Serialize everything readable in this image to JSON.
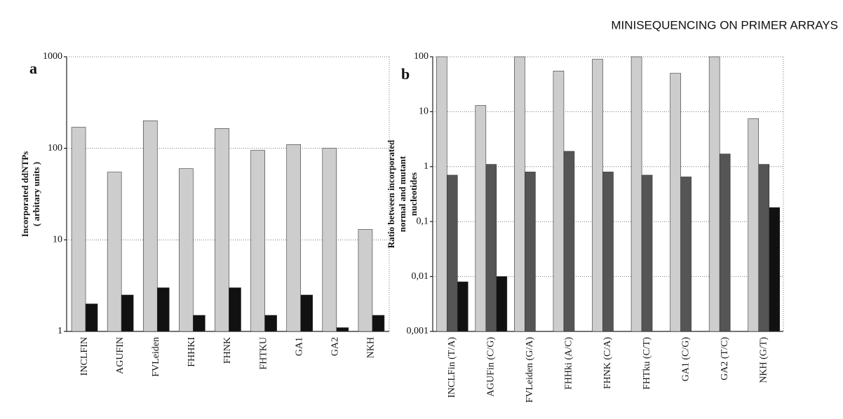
{
  "header": "MINISEQUENCING ON PRIMER ARRAYS",
  "chart_data": [
    {
      "type": "bar",
      "panel": "a",
      "ylabel": [
        "Incorporated ddNTPs",
        "( arbitary units )"
      ],
      "categories": [
        "INCLFIN",
        "AGUFIN",
        "FVLeiden",
        "FHHKI",
        "FHNK",
        "FHTKU",
        "GA1",
        "GA2",
        "NKH"
      ],
      "series": [
        {
          "color": "#cdcdcd",
          "values": [
            170,
            55,
            200,
            60,
            165,
            95,
            110,
            100,
            13
          ]
        },
        {
          "color": "#111111",
          "values": [
            2,
            2.5,
            3,
            1.5,
            3,
            1.5,
            2.5,
            1.1,
            1.5
          ]
        }
      ],
      "log_scale": true,
      "ylim": [
        1,
        1000
      ],
      "yticks": [
        1,
        10,
        100,
        1000
      ],
      "grid": true
    },
    {
      "type": "bar",
      "panel": "b",
      "ylabel": [
        "Ratio between incorporated",
        "normal and mutant",
        "nucleotides"
      ],
      "categories": [
        "INCLFin (T/A)",
        "AGUFin (C/G)",
        "FVLeiden (G/A)",
        "FHHki (A/C)",
        "FHNK (C/A)",
        "FHTku (C/T)",
        "GA1 (C/G)",
        "GA2 (T/C)",
        "NKH (G/T)"
      ],
      "series": [
        {
          "color": "#cdcdcd",
          "values": [
            100,
            13,
            100,
            55,
            90,
            100,
            50,
            100,
            7.5
          ]
        },
        {
          "color": "#555555",
          "values": [
            0.7,
            1.1,
            0.8,
            1.9,
            0.8,
            0.7,
            0.65,
            1.7,
            1.1
          ]
        },
        {
          "color": "#111111",
          "values": [
            0.008,
            0.01,
            0.001,
            0.001,
            0.001,
            0.001,
            0.001,
            0.001,
            0.18
          ]
        }
      ],
      "log_scale": true,
      "ylim": [
        0.001,
        100
      ],
      "yticks": [
        {
          "value": 0.001,
          "label": "0,001"
        },
        {
          "value": 0.01,
          "label": "0,01"
        },
        {
          "value": 0.1,
          "label": "0,1"
        },
        1,
        10,
        100
      ],
      "grid": true
    }
  ]
}
